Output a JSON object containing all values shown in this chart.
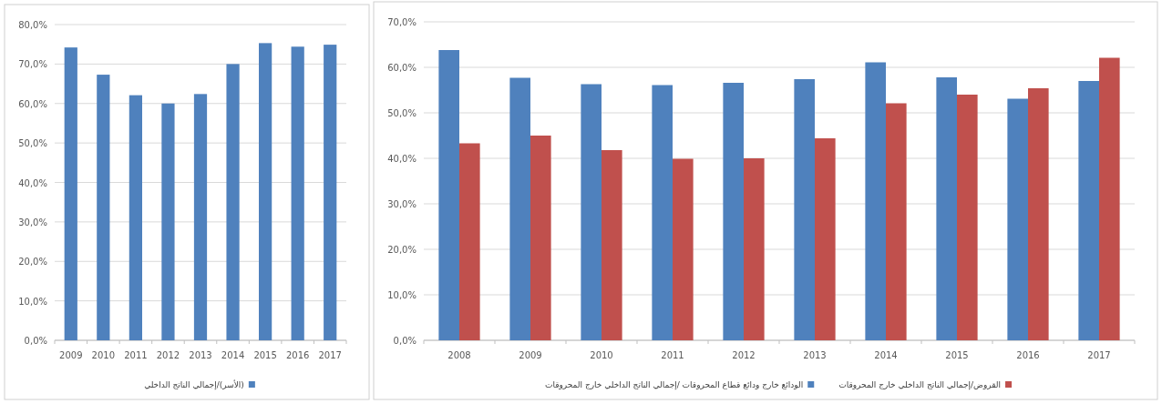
{
  "chart_data": [
    {
      "type": "bar",
      "categories": [
        "2009",
        "2010",
        "2011",
        "2012",
        "2013",
        "2014",
        "2015",
        "2016",
        "2017"
      ],
      "series": [
        {
          "name": "(الأسر)/إجمالي الناتج الداخلي",
          "color": "#4f81bd",
          "values": [
            74.2,
            67.3,
            62.1,
            60.0,
            62.4,
            70.0,
            75.3,
            74.4,
            74.9
          ]
        }
      ],
      "ylim": [
        0,
        80
      ],
      "yticks": [
        {
          "value": 0,
          "label": "0,0%"
        },
        {
          "value": 10,
          "label": "10,0%"
        },
        {
          "value": 20,
          "label": "20,0%"
        },
        {
          "value": 30,
          "label": "30,0%"
        },
        {
          "value": 40,
          "label": "40,0%"
        },
        {
          "value": 50,
          "label": "50,0%"
        },
        {
          "value": 60,
          "label": "60,0%"
        },
        {
          "value": 70,
          "label": "70,0%"
        },
        {
          "value": 80,
          "label": "80,0%"
        }
      ],
      "grid": "y",
      "legend": "bottom"
    },
    {
      "type": "bar",
      "categories": [
        "2008",
        "2009",
        "2010",
        "2011",
        "2012",
        "2013",
        "2014",
        "2015",
        "2016",
        "2017"
      ],
      "series": [
        {
          "name": "الودائع خارج ودائع قطاع المحروقات /إجمالي الناتج الداخلي خارج المحروقات",
          "color": "#4f81bd",
          "values": [
            63.8,
            57.7,
            56.3,
            56.1,
            56.6,
            57.4,
            61.1,
            57.8,
            53.1,
            57.0
          ]
        },
        {
          "name": "القروض/إجمالي الناتج الداخلي خارج المحروقات",
          "color": "#c0504d",
          "values": [
            43.3,
            45.0,
            41.8,
            39.9,
            40.0,
            44.4,
            52.1,
            54.0,
            55.4,
            62.1
          ]
        }
      ],
      "ylim": [
        0,
        70
      ],
      "yticks": [
        {
          "value": 0,
          "label": "0,0%"
        },
        {
          "value": 10,
          "label": "10,0%"
        },
        {
          "value": 20,
          "label": "20,0%"
        },
        {
          "value": 30,
          "label": "30,0%"
        },
        {
          "value": 40,
          "label": "40,0%"
        },
        {
          "value": 50,
          "label": "50,0%"
        },
        {
          "value": 60,
          "label": "60,0%"
        },
        {
          "value": 70,
          "label": "70,0%"
        }
      ],
      "grid": "y",
      "legend": "bottom"
    }
  ]
}
